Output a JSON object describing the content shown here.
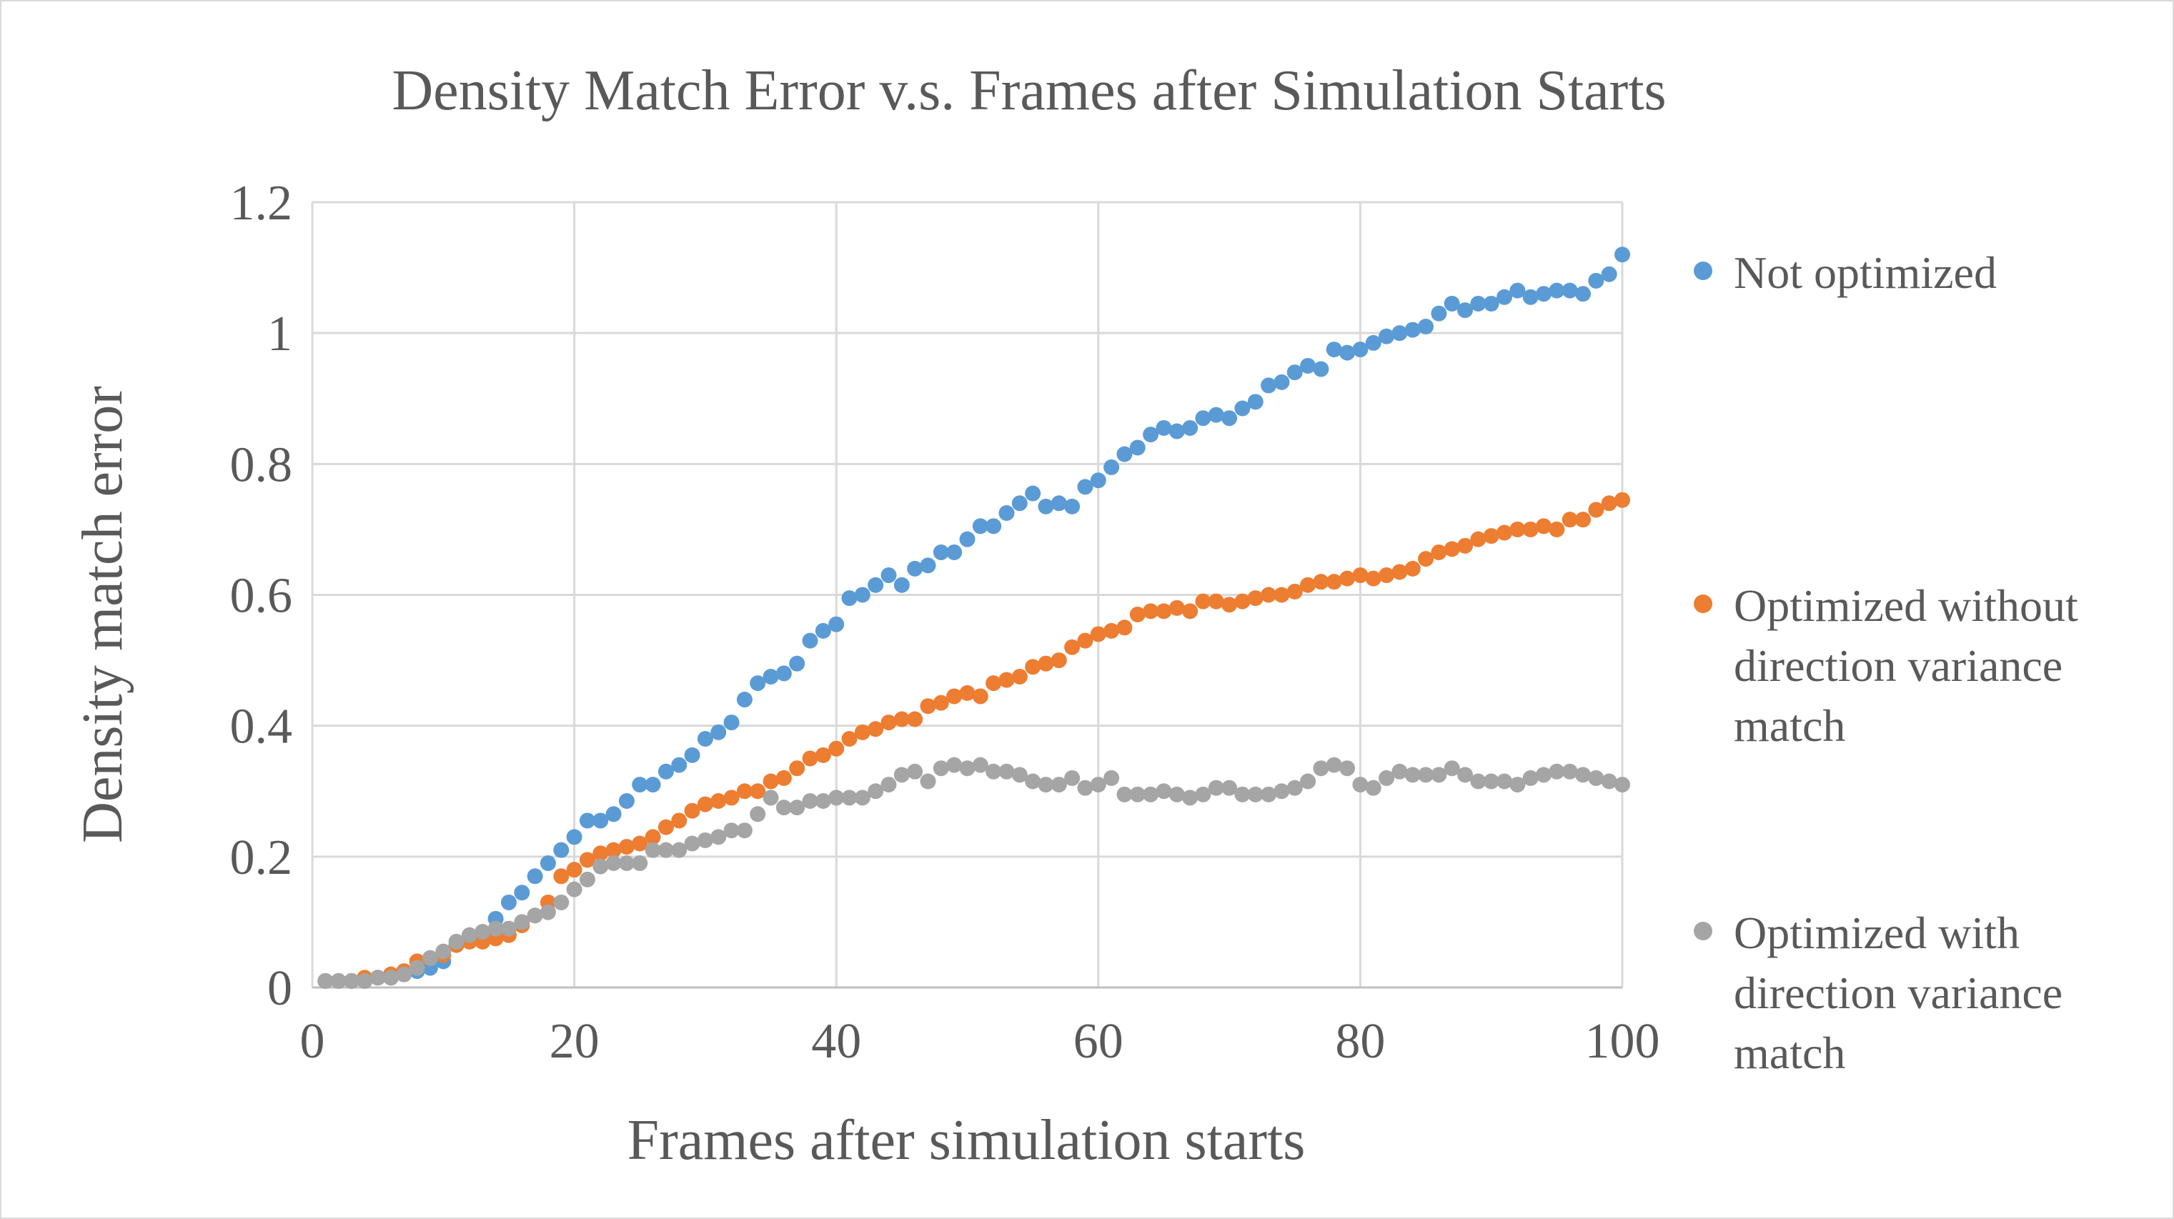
{
  "chart_data": {
    "type": "scatter",
    "title": "Density Match Error v.s. Frames after Simulation Starts",
    "xlabel": "Frames after simulation starts",
    "ylabel": "Density match error",
    "xlim": [
      0,
      100
    ],
    "ylim": [
      0,
      1.2
    ],
    "xticks": [
      "0",
      "20",
      "40",
      "60",
      "80",
      "100"
    ],
    "yticks": [
      "0",
      "0.2",
      "0.4",
      "0.6",
      "0.8",
      "1",
      "1.2"
    ],
    "grid": true,
    "legend_position": "right",
    "x": [
      1,
      2,
      3,
      4,
      5,
      6,
      7,
      8,
      9,
      10,
      11,
      12,
      13,
      14,
      15,
      16,
      17,
      18,
      19,
      20,
      21,
      22,
      23,
      24,
      25,
      26,
      27,
      28,
      29,
      30,
      31,
      32,
      33,
      34,
      35,
      36,
      37,
      38,
      39,
      40,
      41,
      42,
      43,
      44,
      45,
      46,
      47,
      48,
      49,
      50,
      51,
      52,
      53,
      54,
      55,
      56,
      57,
      58,
      59,
      60,
      61,
      62,
      63,
      64,
      65,
      66,
      67,
      68,
      69,
      70,
      71,
      72,
      73,
      74,
      75,
      76,
      77,
      78,
      79,
      80,
      81,
      82,
      83,
      84,
      85,
      86,
      87,
      88,
      89,
      90,
      91,
      92,
      93,
      94,
      95,
      96,
      97,
      98,
      99,
      100
    ],
    "series": [
      {
        "name": "Not optimized",
        "color": "#5b9bd5",
        "values": [
          0.01,
          0.01,
          0.01,
          0.01,
          0.015,
          0.015,
          0.02,
          0.025,
          0.03,
          0.04,
          0.065,
          0.08,
          0.085,
          0.105,
          0.13,
          0.145,
          0.17,
          0.19,
          0.21,
          0.23,
          0.255,
          0.255,
          0.265,
          0.285,
          0.31,
          0.31,
          0.33,
          0.34,
          0.355,
          0.38,
          0.39,
          0.405,
          0.44,
          0.465,
          0.475,
          0.48,
          0.495,
          0.53,
          0.545,
          0.555,
          0.595,
          0.6,
          0.615,
          0.63,
          0.615,
          0.64,
          0.645,
          0.665,
          0.665,
          0.685,
          0.705,
          0.705,
          0.725,
          0.74,
          0.755,
          0.735,
          0.74,
          0.735,
          0.765,
          0.775,
          0.795,
          0.815,
          0.825,
          0.845,
          0.855,
          0.85,
          0.855,
          0.87,
          0.875,
          0.87,
          0.885,
          0.895,
          0.92,
          0.925,
          0.94,
          0.95,
          0.945,
          0.975,
          0.97,
          0.975,
          0.985,
          0.995,
          1.0,
          1.005,
          1.01,
          1.03,
          1.045,
          1.035,
          1.045,
          1.045,
          1.055,
          1.065,
          1.055,
          1.06,
          1.065,
          1.065,
          1.06,
          1.08,
          1.09,
          1.12
        ]
      },
      {
        "name": "Optimized without direction variance match",
        "color": "#ed7d31",
        "values": [
          0.01,
          0.01,
          0.01,
          0.015,
          0.015,
          0.02,
          0.025,
          0.04,
          0.045,
          0.05,
          0.065,
          0.07,
          0.07,
          0.075,
          0.08,
          0.095,
          0.11,
          0.13,
          0.17,
          0.18,
          0.195,
          0.205,
          0.21,
          0.215,
          0.22,
          0.23,
          0.245,
          0.255,
          0.27,
          0.28,
          0.285,
          0.29,
          0.3,
          0.3,
          0.315,
          0.32,
          0.335,
          0.35,
          0.355,
          0.365,
          0.38,
          0.39,
          0.395,
          0.405,
          0.41,
          0.41,
          0.43,
          0.435,
          0.445,
          0.45,
          0.445,
          0.465,
          0.47,
          0.475,
          0.49,
          0.495,
          0.5,
          0.52,
          0.53,
          0.54,
          0.545,
          0.55,
          0.57,
          0.575,
          0.575,
          0.58,
          0.575,
          0.59,
          0.59,
          0.585,
          0.59,
          0.595,
          0.6,
          0.6,
          0.605,
          0.615,
          0.62,
          0.62,
          0.625,
          0.63,
          0.625,
          0.63,
          0.635,
          0.64,
          0.655,
          0.665,
          0.67,
          0.675,
          0.685,
          0.69,
          0.695,
          0.7,
          0.7,
          0.705,
          0.7,
          0.715,
          0.715,
          0.73,
          0.74,
          0.745
        ]
      },
      {
        "name": "Optimized with direction variance match",
        "color": "#a5a5a5",
        "values": [
          0.01,
          0.01,
          0.01,
          0.01,
          0.015,
          0.015,
          0.02,
          0.03,
          0.045,
          0.055,
          0.07,
          0.08,
          0.085,
          0.09,
          0.09,
          0.1,
          0.11,
          0.115,
          0.13,
          0.15,
          0.165,
          0.185,
          0.19,
          0.19,
          0.19,
          0.21,
          0.21,
          0.21,
          0.22,
          0.225,
          0.23,
          0.24,
          0.24,
          0.265,
          0.29,
          0.275,
          0.275,
          0.285,
          0.285,
          0.29,
          0.29,
          0.29,
          0.3,
          0.31,
          0.325,
          0.33,
          0.315,
          0.335,
          0.34,
          0.335,
          0.34,
          0.33,
          0.33,
          0.325,
          0.315,
          0.31,
          0.31,
          0.32,
          0.305,
          0.31,
          0.32,
          0.295,
          0.295,
          0.295,
          0.3,
          0.295,
          0.29,
          0.295,
          0.305,
          0.305,
          0.295,
          0.295,
          0.295,
          0.3,
          0.305,
          0.315,
          0.335,
          0.34,
          0.335,
          0.31,
          0.305,
          0.32,
          0.33,
          0.325,
          0.325,
          0.325,
          0.335,
          0.325,
          0.315,
          0.315,
          0.315,
          0.31,
          0.32,
          0.325,
          0.33,
          0.33,
          0.325,
          0.32,
          0.315,
          0.31
        ]
      }
    ]
  }
}
